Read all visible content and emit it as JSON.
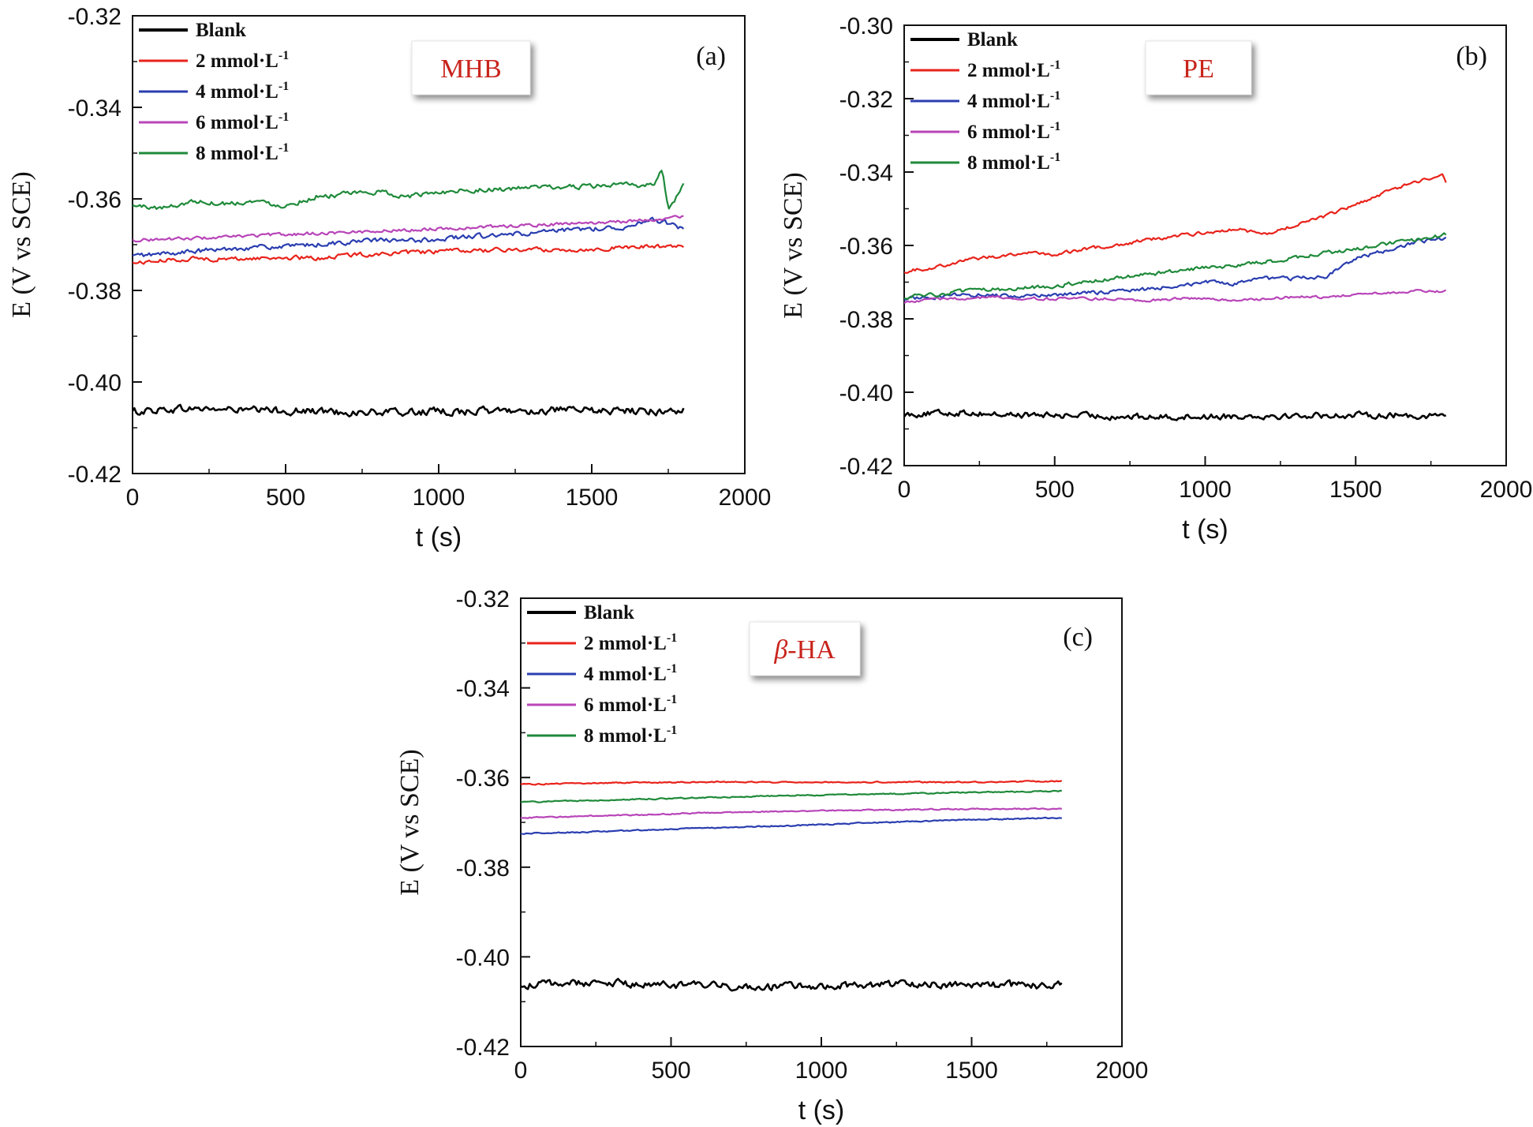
{
  "chart_data": [
    {
      "type": "line",
      "panel_label": "(a)",
      "sample_label": "MHB",
      "xlabel": "t (s)",
      "ylabel": "E (V vs SCE)",
      "xlim": [
        0,
        2000
      ],
      "ylim": [
        -0.42,
        -0.32
      ],
      "x_ticks": [
        0,
        500,
        1000,
        1500,
        2000
      ],
      "y_ticks": [
        -0.42,
        -0.4,
        -0.38,
        -0.36,
        -0.34,
        -0.32
      ],
      "x_tick_labels": [
        "0",
        "500",
        "1000",
        "1500",
        "2000"
      ],
      "y_tick_labels": [
        "-0.42",
        "-0.40",
        "-0.38",
        "-0.36",
        "-0.34",
        "-0.32"
      ],
      "legend_position": "top-left",
      "series": [
        {
          "name": "Blank",
          "color": "#000000",
          "x": [
            0,
            100,
            200,
            300,
            400,
            500,
            600,
            700,
            800,
            900,
            1000,
            1100,
            1200,
            1300,
            1400,
            1500,
            1600,
            1700,
            1800
          ],
          "values": [
            -0.4065,
            -0.406,
            -0.4058,
            -0.406,
            -0.4062,
            -0.4063,
            -0.4064,
            -0.4066,
            -0.4067,
            -0.4066,
            -0.4065,
            -0.4064,
            -0.4063,
            -0.4063,
            -0.4062,
            -0.4063,
            -0.4063,
            -0.4064,
            -0.4062
          ]
        },
        {
          "name": "2 mmol·L",
          "color": "#e8231b",
          "x": [
            0,
            100,
            200,
            300,
            400,
            500,
            600,
            700,
            800,
            900,
            1000,
            1100,
            1200,
            1300,
            1400,
            1500,
            1600,
            1700,
            1800
          ],
          "values": [
            -0.374,
            -0.3735,
            -0.373,
            -0.3732,
            -0.373,
            -0.3728,
            -0.373,
            -0.3723,
            -0.372,
            -0.3718,
            -0.3715,
            -0.3713,
            -0.3712,
            -0.371,
            -0.3712,
            -0.371,
            -0.3706,
            -0.3704,
            -0.3703
          ]
        },
        {
          "name": "4 mmol·L",
          "color": "#2a3eb0",
          "x": [
            0,
            100,
            200,
            300,
            400,
            500,
            600,
            700,
            800,
            900,
            1000,
            1100,
            1200,
            1300,
            1400,
            1500,
            1600,
            1700,
            1800
          ],
          "values": [
            -0.3725,
            -0.372,
            -0.3715,
            -0.371,
            -0.3705,
            -0.3705,
            -0.37,
            -0.3695,
            -0.369,
            -0.3692,
            -0.3688,
            -0.3682,
            -0.368,
            -0.3675,
            -0.367,
            -0.3665,
            -0.3662,
            -0.3645,
            -0.3665
          ]
        },
        {
          "name": "6 mmol·L",
          "color": "#b845b8",
          "x": [
            0,
            100,
            200,
            300,
            400,
            500,
            600,
            700,
            800,
            900,
            1000,
            1100,
            1200,
            1300,
            1400,
            1500,
            1600,
            1700,
            1800
          ],
          "values": [
            -0.369,
            -0.3688,
            -0.3686,
            -0.3684,
            -0.368,
            -0.3678,
            -0.3675,
            -0.3673,
            -0.367,
            -0.3668,
            -0.3665,
            -0.3663,
            -0.366,
            -0.3658,
            -0.3655,
            -0.3652,
            -0.365,
            -0.3645,
            -0.3638
          ]
        },
        {
          "name": "8 mmol·L",
          "color": "#1f8a3a",
          "x": [
            0,
            100,
            200,
            300,
            400,
            500,
            600,
            700,
            800,
            900,
            1000,
            1100,
            1200,
            1300,
            1400,
            1500,
            1600,
            1700,
            1730,
            1750,
            1800
          ],
          "values": [
            -0.3615,
            -0.362,
            -0.3605,
            -0.361,
            -0.3605,
            -0.3615,
            -0.3595,
            -0.359,
            -0.3585,
            -0.3595,
            -0.3585,
            -0.358,
            -0.358,
            -0.3575,
            -0.3575,
            -0.3572,
            -0.357,
            -0.357,
            -0.3535,
            -0.3625,
            -0.357
          ]
        }
      ]
    },
    {
      "type": "line",
      "panel_label": "(b)",
      "sample_label": "PE",
      "xlabel": "t (s)",
      "ylabel": "E (V vs SCE)",
      "xlim": [
        0,
        2000
      ],
      "ylim": [
        -0.42,
        -0.3
      ],
      "x_ticks": [
        0,
        500,
        1000,
        1500,
        2000
      ],
      "y_ticks": [
        -0.42,
        -0.4,
        -0.38,
        -0.36,
        -0.34,
        -0.32,
        -0.3
      ],
      "x_tick_labels": [
        "0",
        "500",
        "1000",
        "1500",
        "2000"
      ],
      "y_tick_labels": [
        "-0.42",
        "-0.40",
        "-0.38",
        "-0.36",
        "-0.34",
        "-0.32",
        "-0.30"
      ],
      "legend_position": "top-left",
      "series": [
        {
          "name": "Blank",
          "color": "#000000",
          "x": [
            0,
            100,
            200,
            300,
            400,
            500,
            600,
            700,
            800,
            900,
            1000,
            1100,
            1200,
            1300,
            1400,
            1500,
            1600,
            1700,
            1800
          ],
          "values": [
            -0.406,
            -0.4058,
            -0.4055,
            -0.406,
            -0.4062,
            -0.4063,
            -0.4064,
            -0.4066,
            -0.4068,
            -0.4067,
            -0.4066,
            -0.4065,
            -0.4064,
            -0.4064,
            -0.4063,
            -0.4063,
            -0.4062,
            -0.4064,
            -0.4062
          ]
        },
        {
          "name": "2 mmol·L",
          "color": "#e8231b",
          "x": [
            0,
            100,
            200,
            300,
            400,
            500,
            600,
            700,
            800,
            900,
            1000,
            1100,
            1200,
            1300,
            1400,
            1500,
            1600,
            1700,
            1790,
            1800
          ],
          "values": [
            -0.367,
            -0.366,
            -0.364,
            -0.363,
            -0.362,
            -0.3625,
            -0.361,
            -0.36,
            -0.3585,
            -0.3575,
            -0.3565,
            -0.3555,
            -0.357,
            -0.3545,
            -0.352,
            -0.349,
            -0.3455,
            -0.3425,
            -0.341,
            -0.343
          ]
        },
        {
          "name": "4 mmol·L",
          "color": "#2a3eb0",
          "x": [
            0,
            100,
            200,
            300,
            400,
            500,
            600,
            700,
            800,
            900,
            1000,
            1100,
            1200,
            1300,
            1400,
            1500,
            1600,
            1700,
            1800
          ],
          "values": [
            -0.3745,
            -0.374,
            -0.3735,
            -0.3735,
            -0.374,
            -0.3735,
            -0.373,
            -0.3725,
            -0.372,
            -0.371,
            -0.37,
            -0.3705,
            -0.369,
            -0.369,
            -0.3685,
            -0.3635,
            -0.3615,
            -0.359,
            -0.358
          ]
        },
        {
          "name": "6 mmol·L",
          "color": "#b845b8",
          "x": [
            0,
            100,
            200,
            300,
            400,
            500,
            600,
            700,
            800,
            900,
            1000,
            1100,
            1200,
            1300,
            1400,
            1500,
            1600,
            1700,
            1800
          ],
          "values": [
            -0.3755,
            -0.3745,
            -0.3745,
            -0.374,
            -0.3745,
            -0.3745,
            -0.3745,
            -0.3745,
            -0.375,
            -0.3745,
            -0.3745,
            -0.375,
            -0.3745,
            -0.374,
            -0.374,
            -0.3735,
            -0.373,
            -0.3725,
            -0.3725
          ]
        },
        {
          "name": "8 mmol·L",
          "color": "#1f8a3a",
          "x": [
            0,
            100,
            200,
            300,
            400,
            500,
            600,
            700,
            800,
            900,
            1000,
            1100,
            1200,
            1300,
            1400,
            1500,
            1600,
            1700,
            1800
          ],
          "values": [
            -0.374,
            -0.3735,
            -0.3725,
            -0.372,
            -0.3715,
            -0.371,
            -0.37,
            -0.369,
            -0.368,
            -0.367,
            -0.366,
            -0.3655,
            -0.3645,
            -0.3635,
            -0.362,
            -0.361,
            -0.3595,
            -0.3585,
            -0.357
          ]
        }
      ]
    },
    {
      "type": "line",
      "panel_label": "(c)",
      "sample_label": "β-HA",
      "xlabel": "t (s)",
      "ylabel": "E (V vs SCE)",
      "xlim": [
        0,
        2000
      ],
      "ylim": [
        -0.42,
        -0.32
      ],
      "x_ticks": [
        0,
        500,
        1000,
        1500,
        2000
      ],
      "y_ticks": [
        -0.42,
        -0.4,
        -0.38,
        -0.36,
        -0.34,
        -0.32
      ],
      "x_tick_labels": [
        "0",
        "500",
        "1000",
        "1500",
        "2000"
      ],
      "y_tick_labels": [
        "-0.42",
        "-0.40",
        "-0.38",
        "-0.36",
        "-0.34",
        "-0.32"
      ],
      "legend_position": "top-left",
      "series": [
        {
          "name": "Blank",
          "color": "#000000",
          "x": [
            0,
            100,
            200,
            300,
            400,
            500,
            600,
            700,
            800,
            900,
            1000,
            1100,
            1200,
            1300,
            1400,
            1500,
            1600,
            1700,
            1800
          ],
          "values": [
            -0.4065,
            -0.406,
            -0.4058,
            -0.4058,
            -0.4062,
            -0.4063,
            -0.4064,
            -0.4066,
            -0.4067,
            -0.4066,
            -0.4065,
            -0.4063,
            -0.4062,
            -0.406,
            -0.4061,
            -0.4062,
            -0.4063,
            -0.4064,
            -0.4063
          ]
        },
        {
          "name": "2 mmol·L",
          "color": "#e8231b",
          "x": [
            0,
            300,
            600,
            900,
            1200,
            1500,
            1800
          ],
          "values": [
            -0.3615,
            -0.3612,
            -0.361,
            -0.361,
            -0.361,
            -0.361,
            -0.3608
          ]
        },
        {
          "name": "4 mmol·L",
          "color": "#2a3eb0",
          "x": [
            0,
            300,
            600,
            900,
            1200,
            1500,
            1800
          ],
          "values": [
            -0.3725,
            -0.372,
            -0.3713,
            -0.3707,
            -0.37,
            -0.3694,
            -0.369
          ]
        },
        {
          "name": "6 mmol·L",
          "color": "#b845b8",
          "x": [
            0,
            300,
            600,
            900,
            1200,
            1500,
            1800
          ],
          "values": [
            -0.369,
            -0.3685,
            -0.3679,
            -0.3675,
            -0.3672,
            -0.367,
            -0.367
          ]
        },
        {
          "name": "8 mmol·L",
          "color": "#1f8a3a",
          "x": [
            0,
            300,
            600,
            900,
            1200,
            1500,
            1800
          ],
          "values": [
            -0.3655,
            -0.365,
            -0.3645,
            -0.364,
            -0.3637,
            -0.3633,
            -0.363
          ]
        }
      ]
    }
  ]
}
